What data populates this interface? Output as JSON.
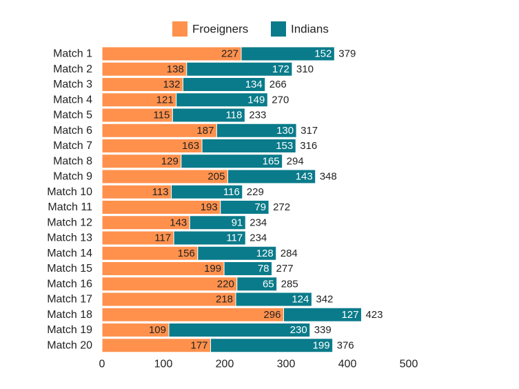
{
  "chart_data": {
    "type": "bar",
    "orientation": "horizontal",
    "stacked": true,
    "categories": [
      "Match 1",
      "Match 2",
      "Match 3",
      "Match 4",
      "Match 5",
      "Match 6",
      "Match 7",
      "Match 8",
      "Match 9",
      "Match 10",
      "Match 11",
      "Match 12",
      "Match 13",
      "Match 14",
      "Match 15",
      "Match 16",
      "Match 17",
      "Match 18",
      "Match 19",
      "Match 20"
    ],
    "series": [
      {
        "name": "Froeigners",
        "color": "#FF914D",
        "label_color": "#222222",
        "values": [
          227,
          138,
          132,
          121,
          115,
          187,
          163,
          129,
          205,
          113,
          193,
          143,
          117,
          156,
          199,
          220,
          218,
          296,
          109,
          177
        ]
      },
      {
        "name": "Indians",
        "color": "#0A7B8A",
        "label_color": "#ffffff",
        "values": [
          152,
          172,
          134,
          149,
          118,
          130,
          153,
          165,
          143,
          116,
          79,
          91,
          117,
          128,
          78,
          65,
          124,
          127,
          230,
          199
        ]
      }
    ],
    "totals": [
      379,
      310,
      266,
      270,
      233,
      317,
      316,
      294,
      348,
      229,
      272,
      234,
      234,
      284,
      277,
      285,
      342,
      423,
      339,
      376
    ],
    "xlim": [
      0,
      500
    ],
    "xticks": [
      0,
      100,
      200,
      300,
      400,
      500
    ],
    "legend_position": "top-center",
    "grid": false
  }
}
